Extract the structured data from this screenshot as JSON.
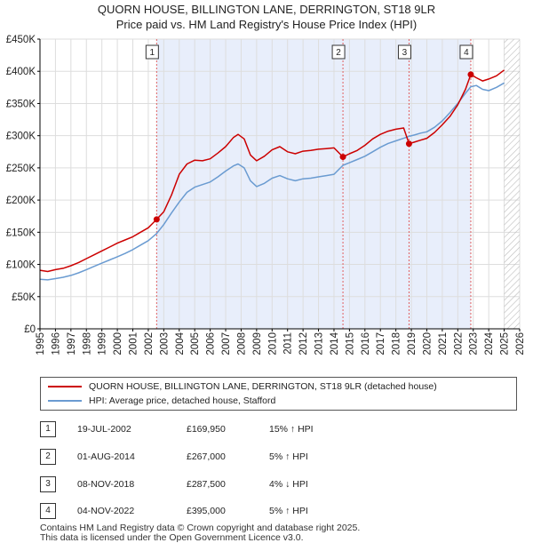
{
  "title_line1": "QUORN HOUSE, BILLINGTON LANE, DERRINGTON, ST18 9LR",
  "title_line2": "Price paid vs. HM Land Registry's House Price Index (HPI)",
  "colors": {
    "property": "#cc0000",
    "hpi": "#6a9bd1",
    "shade": "#e8eefb",
    "hatch": "#bbbbbb"
  },
  "chart_data": {
    "type": "line",
    "title": "Price paid vs. HM Land Registry's House Price Index (HPI)",
    "xlim": [
      1995,
      2026
    ],
    "ylim": [
      0,
      450000
    ],
    "y_ticks": [
      0,
      50000,
      100000,
      150000,
      200000,
      250000,
      300000,
      350000,
      400000,
      450000
    ],
    "y_tick_labels": [
      "£0",
      "£50K",
      "£100K",
      "£150K",
      "£200K",
      "£250K",
      "£300K",
      "£350K",
      "£400K",
      "£450K"
    ],
    "x_ticks": [
      1995,
      1996,
      1997,
      1998,
      1999,
      2000,
      2001,
      2002,
      2003,
      2004,
      2005,
      2006,
      2007,
      2008,
      2009,
      2010,
      2011,
      2012,
      2013,
      2014,
      2015,
      2016,
      2017,
      2018,
      2019,
      2020,
      2021,
      2022,
      2023,
      2024,
      2025,
      2026
    ],
    "x_tick_labels": [
      "1995",
      "1996",
      "1997",
      "1998",
      "1999",
      "2000",
      "2001",
      "2002",
      "2003",
      "2004",
      "2005",
      "2006",
      "2007",
      "2008",
      "2009",
      "2010",
      "2011",
      "2012",
      "2013",
      "2014",
      "2015",
      "2016",
      "2017",
      "2018",
      "2019",
      "2020",
      "2021",
      "2022",
      "2023",
      "2024",
      "2025",
      "2026"
    ],
    "future_hatch_from": 2025.0,
    "series": [
      {
        "name": "QUORN HOUSE, BILLINGTON LANE, DERRINGTON, ST18 9LR (detached house)",
        "color": "#cc0000",
        "x": [
          1995.0,
          1995.5,
          1996.0,
          1996.5,
          1997.0,
          1997.5,
          1998.0,
          1998.5,
          1999.0,
          1999.5,
          2000.0,
          2000.5,
          2001.0,
          2001.5,
          2002.0,
          2002.54,
          2003.0,
          2003.5,
          2004.0,
          2004.5,
          2005.0,
          2005.5,
          2006.0,
          2006.5,
          2007.0,
          2007.5,
          2007.8,
          2008.2,
          2008.6,
          2009.0,
          2009.5,
          2010.0,
          2010.5,
          2011.0,
          2011.5,
          2012.0,
          2012.5,
          2013.0,
          2013.5,
          2014.0,
          2014.58,
          2015.0,
          2015.5,
          2016.0,
          2016.5,
          2017.0,
          2017.5,
          2018.0,
          2018.5,
          2018.85,
          2019.2,
          2019.6,
          2020.0,
          2020.5,
          2021.0,
          2021.5,
          2022.0,
          2022.5,
          2022.84,
          2023.2,
          2023.6,
          2024.0,
          2024.5,
          2025.0
        ],
        "y": [
          91000,
          89000,
          92000,
          94000,
          98000,
          103000,
          109000,
          115000,
          121000,
          127000,
          133000,
          138000,
          143000,
          150000,
          157000,
          169950,
          182000,
          208000,
          240000,
          256000,
          262000,
          261000,
          264000,
          273000,
          283000,
          297000,
          302000,
          295000,
          270000,
          261000,
          268000,
          278000,
          283000,
          275000,
          272000,
          276000,
          277000,
          279000,
          280000,
          281000,
          267000,
          272000,
          277000,
          285000,
          295000,
          302000,
          307000,
          310000,
          312000,
          287500,
          290000,
          293000,
          296000,
          305000,
          317000,
          330000,
          348000,
          372000,
          395000,
          390000,
          385000,
          388000,
          393000,
          402000
        ]
      },
      {
        "name": "HPI: Average price, detached house, Stafford",
        "color": "#6a9bd1",
        "x": [
          1995.0,
          1995.5,
          1996.0,
          1996.5,
          1997.0,
          1997.5,
          1998.0,
          1998.5,
          1999.0,
          1999.5,
          2000.0,
          2000.5,
          2001.0,
          2001.5,
          2002.0,
          2002.54,
          2003.0,
          2003.5,
          2004.0,
          2004.5,
          2005.0,
          2005.5,
          2006.0,
          2006.5,
          2007.0,
          2007.5,
          2007.8,
          2008.2,
          2008.6,
          2009.0,
          2009.5,
          2010.0,
          2010.5,
          2011.0,
          2011.5,
          2012.0,
          2012.5,
          2013.0,
          2013.5,
          2014.0,
          2014.58,
          2015.0,
          2015.5,
          2016.0,
          2016.5,
          2017.0,
          2017.5,
          2018.0,
          2018.5,
          2018.85,
          2019.2,
          2019.6,
          2020.0,
          2020.5,
          2021.0,
          2021.5,
          2022.0,
          2022.5,
          2022.84,
          2023.2,
          2023.6,
          2024.0,
          2024.5,
          2025.0
        ],
        "y": [
          77000,
          76000,
          78000,
          80000,
          83000,
          87000,
          92000,
          97000,
          102000,
          107000,
          112000,
          117000,
          123000,
          130000,
          137000,
          148000,
          162000,
          180000,
          197000,
          212000,
          220000,
          224000,
          228000,
          236000,
          245000,
          253000,
          256000,
          250000,
          230000,
          221000,
          226000,
          234000,
          238000,
          233000,
          230000,
          233000,
          234000,
          236000,
          238000,
          240000,
          254000,
          258000,
          263000,
          268000,
          275000,
          282000,
          288000,
          292000,
          296000,
          299000,
          301000,
          304000,
          306000,
          313000,
          323000,
          336000,
          350000,
          366000,
          376000,
          378000,
          372000,
          370000,
          375000,
          382000
        ]
      }
    ],
    "transactions": [
      {
        "label": "1",
        "date": "19-JUL-2002",
        "x": 2002.54,
        "price": 169950,
        "price_text": "£169,950",
        "hpi_text": "15% ↑ HPI"
      },
      {
        "label": "2",
        "date": "01-AUG-2014",
        "x": 2014.58,
        "price": 267000,
        "price_text": "£267,000",
        "hpi_text": "5% ↑ HPI"
      },
      {
        "label": "3",
        "date": "08-NOV-2018",
        "x": 2018.85,
        "price": 287500,
        "price_text": "£287,500",
        "hpi_text": "4% ↓ HPI"
      },
      {
        "label": "4",
        "date": "04-NOV-2022",
        "x": 2022.84,
        "price": 395000,
        "price_text": "£395,000",
        "hpi_text": "5% ↑ HPI"
      }
    ]
  },
  "legend": {
    "property_label": "QUORN HOUSE, BILLINGTON LANE, DERRINGTON, ST18 9LR (detached house)",
    "hpi_label": "HPI: Average price, detached house, Stafford"
  },
  "footer": {
    "line1": "Contains HM Land Registry data © Crown copyright and database right 2025.",
    "line2": "This data is licensed under the Open Government Licence v3.0."
  }
}
